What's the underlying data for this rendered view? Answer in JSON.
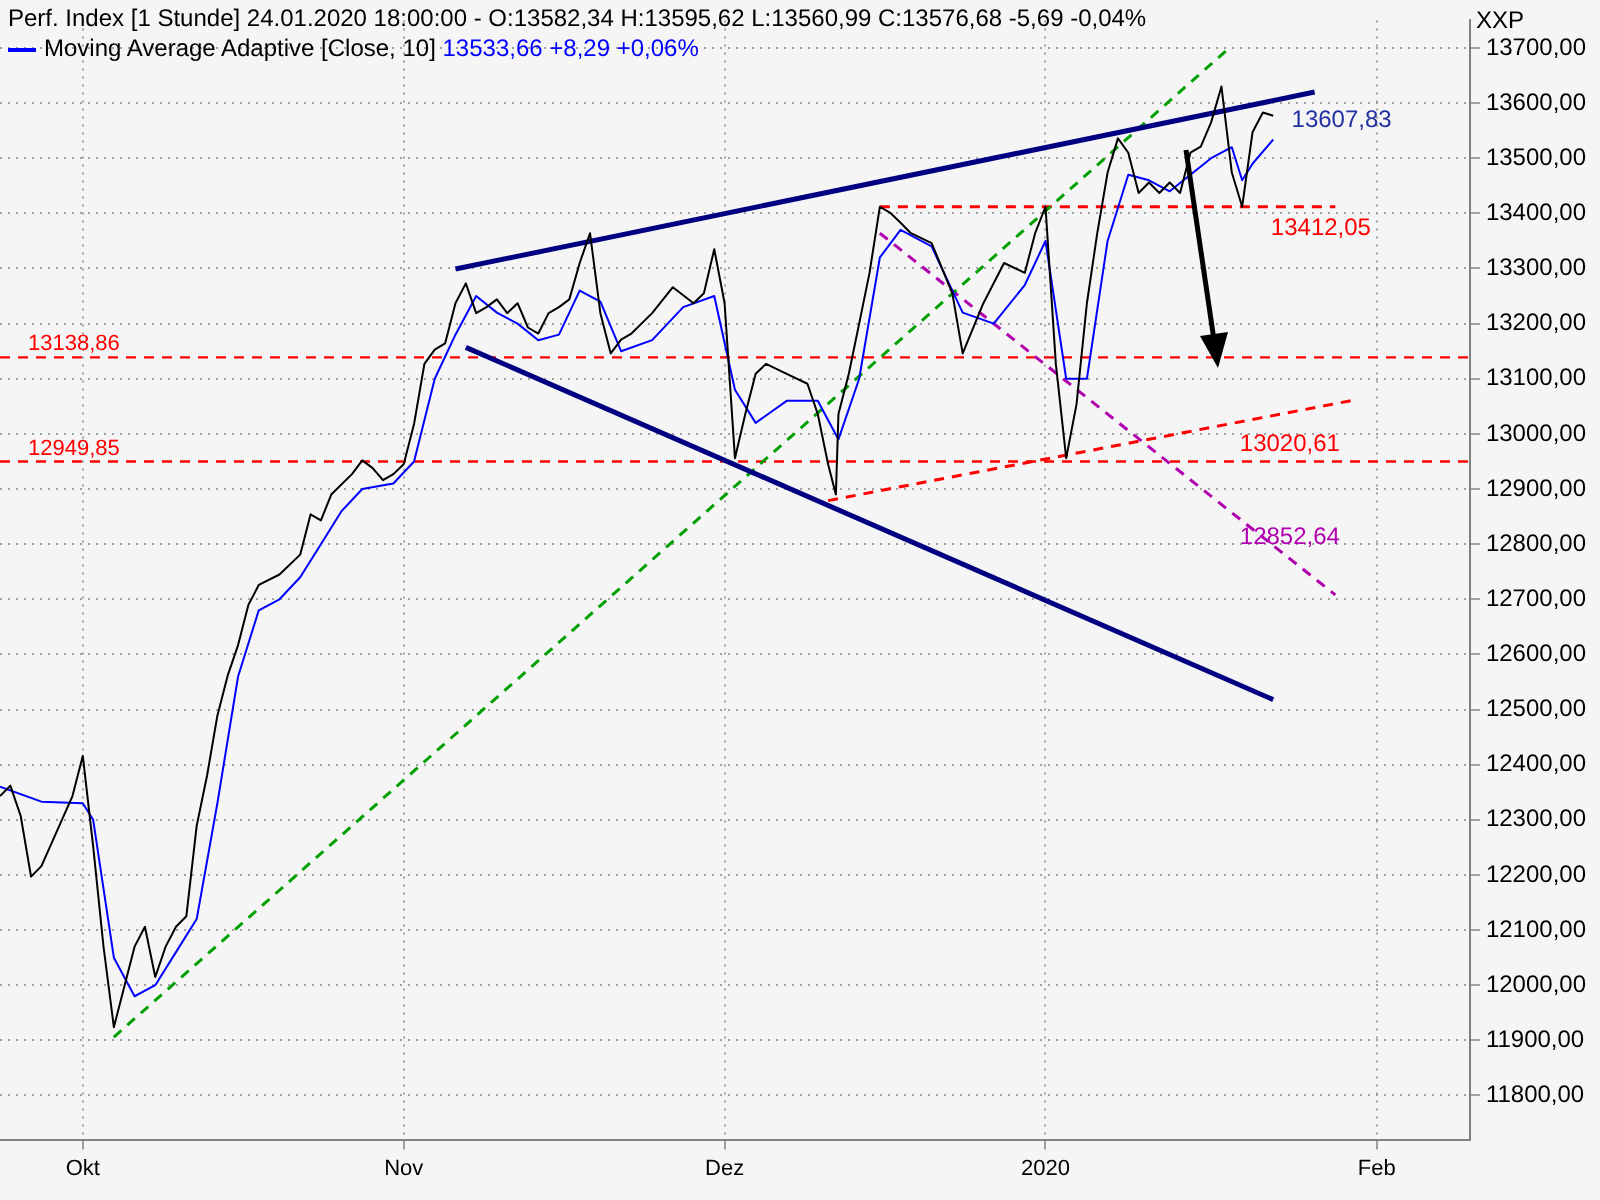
{
  "chart_data": {
    "type": "line",
    "title": "Perf. Index [1 Stunde] 24.01.2020 18:00:00 - O:13582,34 H:13595,62 L:13560,99 C:13576,68 -5,69 -0,04%",
    "ylabel": "XXP",
    "xlim": [
      "2019-09-23",
      "2020-02-12"
    ],
    "xticks": [
      {
        "value": "2019-10-01",
        "label": "Okt"
      },
      {
        "value": "2019-11-01",
        "label": "Nov"
      },
      {
        "value": "2019-12-02",
        "label": "Dez"
      },
      {
        "value": "2020-01-02",
        "label": "2020"
      },
      {
        "value": "2020-02-03",
        "label": "Feb"
      }
    ],
    "ylim": [
      11720,
      13750
    ],
    "yticks": [
      {
        "value": 11800,
        "label": "11800,00"
      },
      {
        "value": 11900,
        "label": "11900,00"
      },
      {
        "value": 12000,
        "label": "12000,00"
      },
      {
        "value": 12100,
        "label": "12100,00"
      },
      {
        "value": 12200,
        "label": "12200,00"
      },
      {
        "value": 12300,
        "label": "12300,00"
      },
      {
        "value": 12400,
        "label": "12400,00"
      },
      {
        "value": 12500,
        "label": "12500,00"
      },
      {
        "value": 12600,
        "label": "12600,00"
      },
      {
        "value": 12700,
        "label": "12700,00"
      },
      {
        "value": 12800,
        "label": "12800,00"
      },
      {
        "value": 12900,
        "label": "12900,00"
      },
      {
        "value": 13000,
        "label": "13000,00"
      },
      {
        "value": 13100,
        "label": "13100,00"
      },
      {
        "value": 13200,
        "label": "13200,00"
      },
      {
        "value": 13300,
        "label": "13300,00"
      },
      {
        "value": 13400,
        "label": "13400,00"
      },
      {
        "value": 13500,
        "label": "13500,00"
      },
      {
        "value": 13600,
        "label": "13600,00"
      },
      {
        "value": 13700,
        "label": "13700,00"
      }
    ],
    "grid": true,
    "legend": "top left",
    "marker": "none",
    "line_style": "solid",
    "series": [
      {
        "color": "#000000",
        "x": [
          "2019-09-23",
          "2019-09-24",
          "2019-09-25",
          "2019-09-26",
          "2019-09-27",
          "2019-09-30",
          "2019-10-01",
          "2019-10-02",
          "2019-10-03",
          "2019-10-04",
          "2019-10-06",
          "2019-10-07",
          "2019-10-08",
          "2019-10-09",
          "2019-10-10",
          "2019-10-11",
          "2019-10-12",
          "2019-10-13",
          "2019-10-14",
          "2019-10-15",
          "2019-10-16",
          "2019-10-17",
          "2019-10-18",
          "2019-10-20",
          "2019-10-22",
          "2019-10-23",
          "2019-10-24",
          "2019-10-25",
          "2019-10-27",
          "2019-10-28",
          "2019-10-29",
          "2019-10-30",
          "2019-10-31",
          "2019-11-01",
          "2019-11-02",
          "2019-11-03",
          "2019-11-04",
          "2019-11-05",
          "2019-11-06",
          "2019-11-07",
          "2019-11-08",
          "2019-11-09",
          "2019-11-10",
          "2019-11-11",
          "2019-11-12",
          "2019-11-13",
          "2019-11-14",
          "2019-11-15",
          "2019-11-16",
          "2019-11-17",
          "2019-11-18",
          "2019-11-19",
          "2019-11-20",
          "2019-11-21",
          "2019-11-22",
          "2019-11-23",
          "2019-11-25",
          "2019-11-27",
          "2019-11-29",
          "2019-11-30",
          "2019-12-01",
          "2019-12-02",
          "2019-12-03",
          "2019-12-04",
          "2019-12-05",
          "2019-12-06",
          "2019-12-08",
          "2019-12-10",
          "2019-12-11",
          "2019-12-12",
          "2019-12-12T18:00",
          "2019-12-13",
          "2019-12-14",
          "2019-12-15",
          "2019-12-16",
          "2019-12-17",
          "2019-12-18",
          "2019-12-19",
          "2019-12-20",
          "2019-12-22",
          "2019-12-24",
          "2019-12-25",
          "2019-12-27",
          "2019-12-29",
          "2019-12-31",
          "2020-01-01",
          "2020-01-02",
          "2020-01-03",
          "2020-01-04",
          "2020-01-05",
          "2020-01-06",
          "2020-01-07",
          "2020-01-08",
          "2020-01-09",
          "2020-01-10",
          "2020-01-11",
          "2020-01-12",
          "2020-01-13",
          "2020-01-14",
          "2020-01-15",
          "2020-01-16",
          "2020-01-17",
          "2020-01-18",
          "2020-01-19",
          "2020-01-20",
          "2020-01-21",
          "2020-01-22",
          "2020-01-23",
          "2020-01-24"
        ],
        "values": [
          12343,
          12362,
          12307,
          12197,
          12216,
          12343,
          12416,
          12252,
          12070,
          11924,
          12070,
          12106,
          12015,
          12070,
          12106,
          12125,
          12289,
          12380,
          12489,
          12562,
          12617,
          12690,
          12726,
          12745,
          12781,
          12854,
          12843,
          12890,
          12927,
          12952,
          12938,
          12916,
          12927,
          12945,
          13018,
          13127,
          13153,
          13164,
          13237,
          13273,
          13219,
          13230,
          13244,
          13219,
          13237,
          13193,
          13182,
          13219,
          13230,
          13244,
          13310,
          13364,
          13219,
          13146,
          13171,
          13182,
          13219,
          13266,
          13237,
          13255,
          13335,
          13237,
          12956,
          13036,
          13109,
          13127,
          13109,
          13091,
          13036,
          12945,
          12890,
          13036,
          13109,
          13200,
          13292,
          13412,
          13401,
          13383,
          13364,
          13346,
          13255,
          13146,
          13237,
          13310,
          13292,
          13364,
          13412,
          13127,
          12956,
          13054,
          13237,
          13364,
          13474,
          13536,
          13510,
          13437,
          13456,
          13437,
          13456,
          13437,
          13510,
          13521,
          13565,
          13630,
          13474,
          13412,
          13547,
          13583,
          13577
        ]
      },
      {
        "name": "Moving Average Adaptive [Close, 10]",
        "color": "#0000ff",
        "x": [
          "2019-09-23",
          "2019-09-27",
          "2019-10-01",
          "2019-10-02",
          "2019-10-04",
          "2019-10-06",
          "2019-10-08",
          "2019-10-10",
          "2019-10-12",
          "2019-10-14",
          "2019-10-16",
          "2019-10-18",
          "2019-10-20",
          "2019-10-22",
          "2019-10-24",
          "2019-10-26",
          "2019-10-28",
          "2019-10-31",
          "2019-11-02",
          "2019-11-04",
          "2019-11-06",
          "2019-11-08",
          "2019-11-10",
          "2019-11-12",
          "2019-11-14",
          "2019-11-16",
          "2019-11-18",
          "2019-11-20",
          "2019-11-22",
          "2019-11-25",
          "2019-11-28",
          "2019-12-01",
          "2019-12-03",
          "2019-12-05",
          "2019-12-08",
          "2019-12-11",
          "2019-12-13",
          "2019-12-15",
          "2019-12-17",
          "2019-12-19",
          "2019-12-22",
          "2019-12-25",
          "2019-12-28",
          "2019-12-31",
          "2020-01-02",
          "2020-01-04",
          "2020-01-06",
          "2020-01-08",
          "2020-01-10",
          "2020-01-12",
          "2020-01-14",
          "2020-01-16",
          "2020-01-18",
          "2020-01-20",
          "2020-01-21",
          "2020-01-22",
          "2020-01-24"
        ],
        "values": [
          12360,
          12333,
          12330,
          12300,
          12050,
          11980,
          12000,
          12060,
          12120,
          12330,
          12560,
          12680,
          12700,
          12740,
          12800,
          12860,
          12900,
          12910,
          12950,
          13100,
          13180,
          13250,
          13220,
          13200,
          13170,
          13180,
          13260,
          13240,
          13150,
          13170,
          13230,
          13250,
          13080,
          13020,
          13060,
          13060,
          12990,
          13100,
          13320,
          13370,
          13340,
          13220,
          13200,
          13270,
          13350,
          13100,
          13100,
          13350,
          13470,
          13460,
          13440,
          13470,
          13500,
          13520,
          13460,
          13490,
          13534
        ]
      },
      {
        "type": "line",
        "color": "#000080",
        "x": [
          "2019-11-06",
          "2020-01-28"
        ],
        "values": [
          13299,
          13620
        ]
      },
      {
        "type": "line",
        "color": "#000080",
        "x": [
          "2019-11-07",
          "2020-01-24"
        ],
        "values": [
          13157,
          12518
        ]
      },
      {
        "type": "line",
        "color": "#00a000",
        "line_style": "dashed",
        "x": [
          "2019-10-04",
          "2020-01-20"
        ],
        "values": [
          11906,
          13704
        ]
      },
      {
        "type": "line",
        "color": "#ff0000",
        "line_style": "dashed",
        "x": [
          "2019-12-12",
          "2020-02-01"
        ],
        "values": [
          12879,
          13062
        ]
      },
      {
        "type": "line",
        "color": "#b000b0",
        "line_style": "dashed",
        "x": [
          "2019-12-17",
          "2020-01-30"
        ],
        "values": [
          13364,
          12708
        ]
      },
      {
        "type": "line",
        "color": "#ff0000",
        "line_style": "dashed",
        "x": [
          "2019-12-17",
          "2020-01-30"
        ],
        "values": [
          13412.05,
          13412.05
        ]
      }
    ],
    "ref_lines": [
      {
        "axis": "y",
        "value": 13138.86,
        "label": "13138,86",
        "color": "#ff0000",
        "line_style": "dashed"
      },
      {
        "axis": "y",
        "value": 12949.85,
        "label": "12949,85",
        "color": "#ff0000",
        "line_style": "dashed"
      }
    ],
    "annotations": [
      "13533,66 +8,29 +0,06%",
      {
        "text": "13607,83",
        "x": "2020-01-25",
        "y": 13607.83
      },
      {
        "text": "13412,05",
        "x": "2020-01-23",
        "y": 13412.05
      },
      {
        "text": "13020,61",
        "x": "2020-01-20",
        "y": 13020.61
      },
      {
        "text": "12852,64",
        "x": "2020-01-20",
        "y": 12852.64
      }
    ]
  }
}
